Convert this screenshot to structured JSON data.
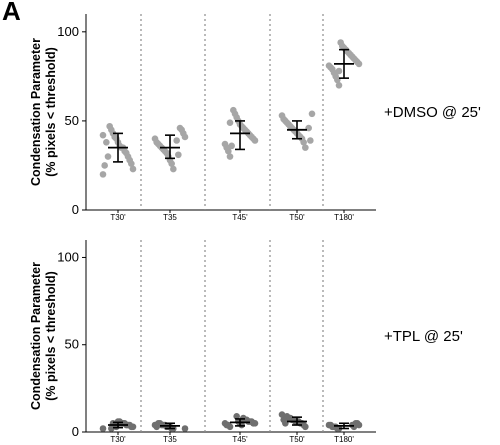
{
  "panel_letter": "A",
  "y_axis_title_line1": "Condensation Parameter",
  "y_axis_title_line2": "(% pixels < threshold)",
  "conditions": [
    "+DMSO @ 25'",
    "+TPL @ 25'"
  ],
  "chart_data": [
    {
      "type": "scatter",
      "name": "+DMSO @ 25'",
      "categories": [
        "T30'",
        "T35",
        "T45'",
        "T50'",
        "T180'"
      ],
      "ylim": [
        0,
        110
      ],
      "yticks": [
        0,
        50,
        100
      ],
      "grid": false,
      "point_color": "#a6a6a6",
      "summary": [
        {
          "mean": 35,
          "sd_low": 27,
          "sd_high": 43
        },
        {
          "mean": 35,
          "sd_low": 29,
          "sd_high": 42
        },
        {
          "mean": 43,
          "sd_low": 34,
          "sd_high": 50
        },
        {
          "mean": 45,
          "sd_low": 40,
          "sd_high": 50
        },
        {
          "mean": 82,
          "sd_low": 74,
          "sd_high": 90
        }
      ],
      "points": [
        [
          20,
          23,
          26,
          28,
          30,
          32,
          33,
          35,
          35,
          36,
          38,
          40,
          41,
          43,
          45,
          47,
          30,
          38,
          25,
          42
        ],
        [
          23,
          26,
          28,
          30,
          32,
          33,
          34,
          35,
          36,
          37,
          38,
          40,
          41,
          43,
          45,
          46,
          31,
          39
        ],
        [
          30,
          33,
          35,
          37,
          39,
          40,
          41,
          42,
          43,
          44,
          45,
          46,
          47,
          48,
          50,
          52,
          54,
          56,
          36,
          49
        ],
        [
          35,
          38,
          40,
          41,
          42,
          43,
          44,
          45,
          46,
          47,
          48,
          49,
          50,
          51,
          53,
          54,
          39,
          46
        ],
        [
          70,
          73,
          75,
          77,
          79,
          80,
          81,
          82,
          83,
          84,
          85,
          86,
          87,
          88,
          89,
          90,
          91,
          92,
          94,
          78
        ]
      ]
    },
    {
      "type": "scatter",
      "name": "+TPL @ 25'",
      "categories": [
        "T30'",
        "T35",
        "T45'",
        "T50'",
        "T180'"
      ],
      "ylim": [
        0,
        110
      ],
      "yticks": [
        0,
        50,
        100
      ],
      "grid": false,
      "point_color": "#6f6f6f",
      "summary": [
        {
          "mean": 4,
          "sd_low": 2.5,
          "sd_high": 5.5
        },
        {
          "mean": 3.5,
          "sd_low": 2,
          "sd_high": 5
        },
        {
          "mean": 5.5,
          "sd_low": 3.5,
          "sd_high": 7.5
        },
        {
          "mean": 6,
          "sd_low": 4,
          "sd_high": 8.5
        },
        {
          "mean": 3.5,
          "sd_low": 2,
          "sd_high": 5
        }
      ],
      "points": [
        [
          2,
          3,
          3,
          4,
          4,
          4,
          5,
          5,
          5,
          6,
          6,
          3,
          4,
          5,
          2
        ],
        [
          2,
          2,
          3,
          3,
          3,
          4,
          4,
          4,
          5,
          5,
          3,
          4,
          2
        ],
        [
          3,
          4,
          4,
          5,
          5,
          5,
          6,
          6,
          6,
          7,
          7,
          8,
          4,
          5,
          6,
          9
        ],
        [
          3,
          4,
          5,
          5,
          6,
          6,
          6,
          7,
          7,
          8,
          8,
          9,
          5,
          7,
          10
        ],
        [
          2,
          2,
          3,
          3,
          3,
          4,
          4,
          4,
          5,
          5,
          3,
          4
        ]
      ]
    }
  ]
}
